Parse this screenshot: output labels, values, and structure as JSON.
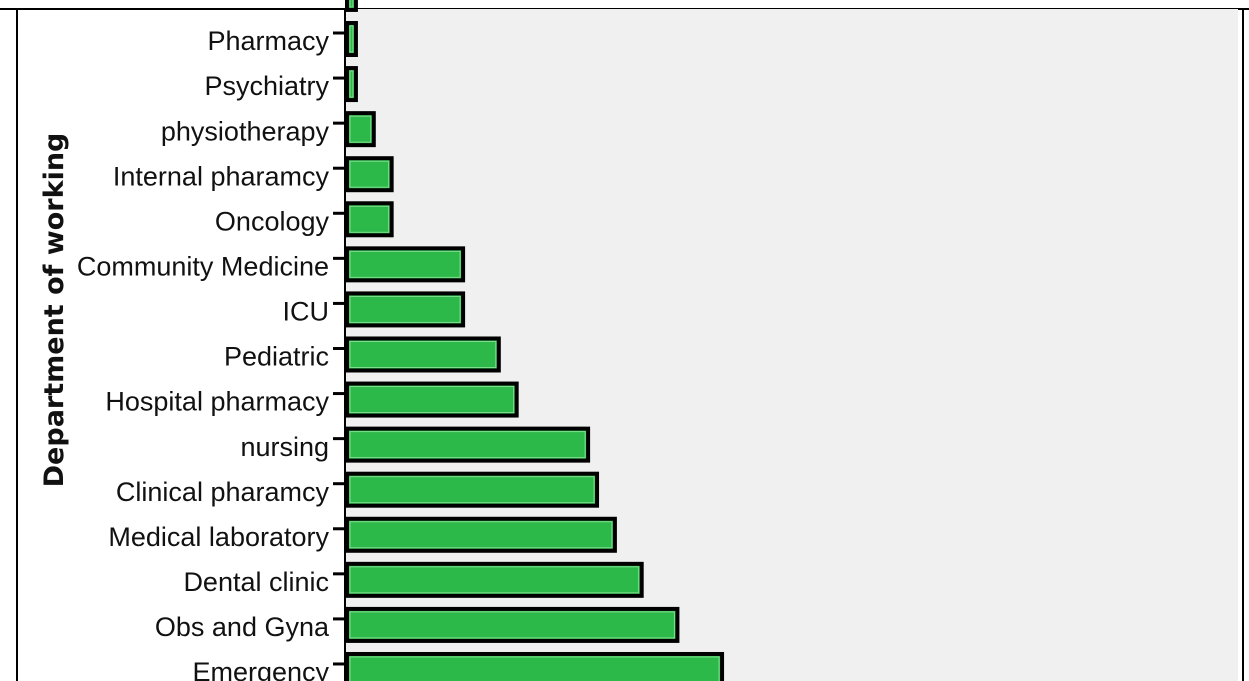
{
  "chart_data": {
    "type": "bar",
    "orientation": "horizontal",
    "ylabel": "Department of working",
    "xlabel": "",
    "bar_color": "#2db84a",
    "plot_background": "#f0f0f0",
    "grid": false,
    "xlim": [
      0,
      100
    ],
    "categories": [
      "Pharmacy",
      "Psychiatry",
      "physiotherapy",
      "Internal pharamcy",
      "Oncology",
      "Community Medicine",
      "ICU",
      "Pediatric",
      "Hospital pharmacy",
      "nursing",
      "Clinical pharamcy",
      "Medical laboratory",
      "Dental clinic",
      "Obs and Gyna",
      "Emergency"
    ],
    "values": [
      1,
      1,
      3,
      5,
      5,
      13,
      13,
      17,
      19,
      27,
      28,
      30,
      33,
      37,
      42
    ],
    "partial_top_bar_value": 1
  }
}
